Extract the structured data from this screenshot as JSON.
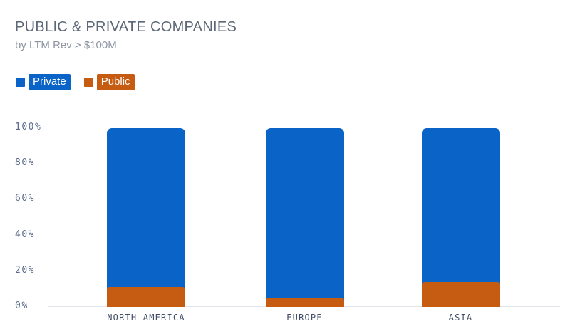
{
  "page": {
    "title": "PUBLIC & PRIVATE COMPANIES",
    "subtitle": "by LTM Rev > $100M"
  },
  "colors": {
    "private_blue": "#0a64c8",
    "public_orange": "#c65c12",
    "title_text": "#5d6877",
    "subtitle_text": "#8d95a3",
    "tick_text": "#5b6b8c",
    "category_text": "#3f4d66",
    "axis_line": "#e1e5ea",
    "background": "#ffffff"
  },
  "legend": {
    "items": [
      {
        "label": "Private",
        "color": "#0a64c8"
      },
      {
        "label": "Public",
        "color": "#c65c12"
      }
    ]
  },
  "chart_data": {
    "type": "bar",
    "variant": "stacked-100-percent",
    "title": "PUBLIC & PRIVATE COMPANIES",
    "subtitle": "by LTM Rev > $100M",
    "categories": [
      "NORTH AMERICA",
      "EUROPE",
      "ASIA"
    ],
    "series": [
      {
        "name": "Private",
        "color": "#0a64c8",
        "position": "top",
        "values": [
          89,
          95,
          86
        ]
      },
      {
        "name": "Public",
        "color": "#c65c12",
        "position": "bottom",
        "values": [
          11,
          5,
          14
        ]
      }
    ],
    "xlabel": "",
    "ylabel": "",
    "y_ticks": [
      "0%",
      "20%",
      "40%",
      "60%",
      "80%",
      "100%"
    ],
    "ylim": [
      0,
      100
    ],
    "grid": false,
    "legend_position": "top-left"
  }
}
